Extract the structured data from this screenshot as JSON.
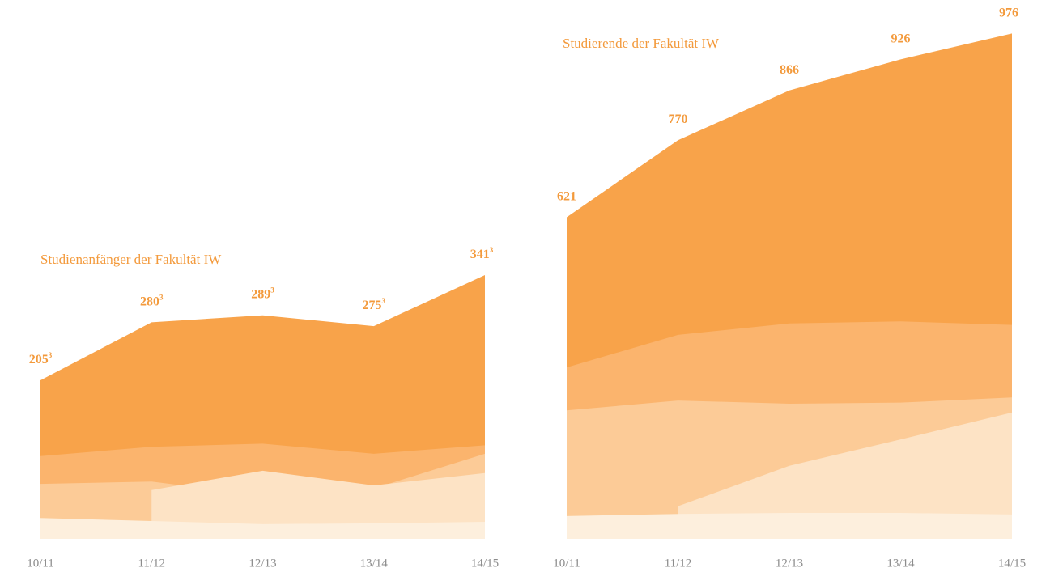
{
  "chart_data": [
    {
      "type": "area",
      "title": "Studienanfänger der Fakultät IW",
      "footnote_mark": "3",
      "categories": [
        "10/11",
        "11/12",
        "12/13",
        "13/14",
        "14/15"
      ],
      "series": [
        {
          "color": "#f8a34a",
          "values": [
            205,
            280,
            289,
            275,
            341
          ]
        },
        {
          "color": "#fbb46d",
          "values": [
            107,
            119,
            123,
            110,
            121
          ]
        },
        {
          "color": "#fccb97",
          "values": [
            71,
            74,
            56,
            65,
            110
          ]
        },
        {
          "color": "#fde3c5",
          "values": [
            null,
            63,
            88,
            69,
            85
          ]
        },
        {
          "color": "#fdefdd",
          "values": [
            27,
            23,
            19,
            20,
            22
          ]
        }
      ]
    },
    {
      "type": "area",
      "title": "Studierende der Fakultät IW",
      "categories": [
        "10/11",
        "11/12",
        "12/13",
        "13/14",
        "14/15"
      ],
      "series": [
        {
          "color": "#f8a34a",
          "values": [
            621,
            770,
            866,
            926,
            976
          ]
        },
        {
          "color": "#fbb46d",
          "values": [
            331,
            394,
            416,
            420,
            413
          ]
        },
        {
          "color": "#fccb97",
          "values": [
            248,
            267,
            261,
            263,
            273
          ]
        },
        {
          "color": "#fde3c5",
          "values": [
            null,
            63,
            141,
            192,
            244
          ]
        },
        {
          "color": "#fdefdd",
          "values": [
            44,
            48,
            50,
            50,
            47
          ]
        }
      ]
    }
  ]
}
